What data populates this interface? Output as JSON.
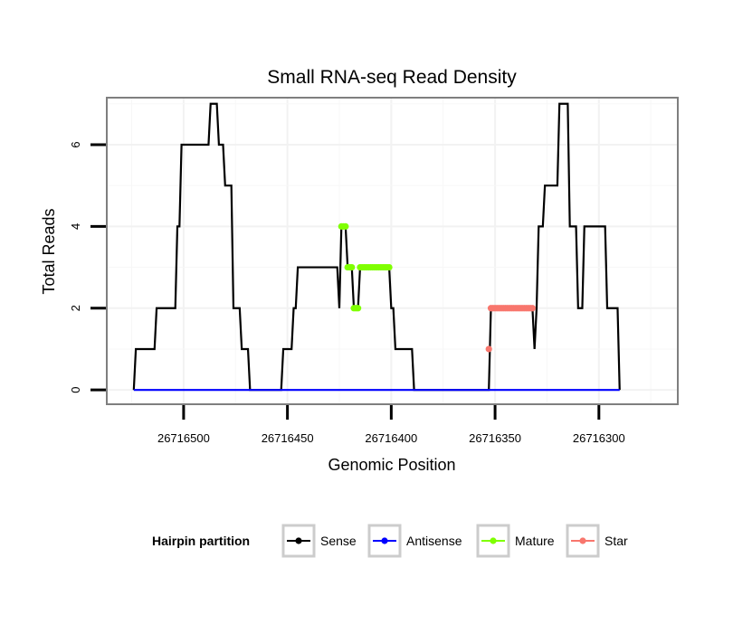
{
  "chart_data": {
    "type": "line",
    "title": "Small RNA-seq Read Density",
    "xlabel": "Genomic Position",
    "ylabel": "Total Reads",
    "x_reversed": true,
    "xlim": [
      26716262,
      26716537
    ],
    "ylim": [
      -0.35,
      7.15
    ],
    "x_ticks": [
      26716500,
      26716450,
      26716400,
      26716350,
      26716300
    ],
    "x_tick_labels": [
      "26716500",
      "26716450",
      "26716400",
      "26716350",
      "26716300"
    ],
    "y_ticks": [
      0,
      2,
      4,
      6
    ],
    "y_tick_labels": [
      "0",
      "2",
      "4",
      "6"
    ],
    "grid": true,
    "legend_title": "Hairpin partition",
    "legend_position": "bottom",
    "series": [
      {
        "name": "Sense",
        "color": "#000000",
        "style": "line",
        "points": [
          [
            26716524,
            0
          ],
          [
            26716523,
            1
          ],
          [
            26716514,
            1
          ],
          [
            26716513,
            2
          ],
          [
            26716504,
            2
          ],
          [
            26716503,
            4
          ],
          [
            26716502,
            4
          ],
          [
            26716501,
            6
          ],
          [
            26716488,
            6
          ],
          [
            26716487,
            7
          ],
          [
            26716484,
            7
          ],
          [
            26716483,
            6
          ],
          [
            26716481,
            6
          ],
          [
            26716480,
            5
          ],
          [
            26716477,
            5
          ],
          [
            26716476,
            2
          ],
          [
            26716473,
            2
          ],
          [
            26716472,
            1
          ],
          [
            26716469,
            1
          ],
          [
            26716468,
            0
          ],
          [
            26716453,
            0
          ],
          [
            26716452,
            1
          ],
          [
            26716448,
            1
          ],
          [
            26716447,
            2
          ],
          [
            26716446,
            2
          ],
          [
            26716445,
            3
          ],
          [
            26716426,
            3
          ],
          [
            26716425,
            2
          ],
          [
            26716424,
            4
          ],
          [
            26716422,
            4
          ],
          [
            26716421,
            3
          ],
          [
            26716419,
            3
          ],
          [
            26716418,
            2
          ],
          [
            26716416,
            2
          ],
          [
            26716415,
            3
          ],
          [
            26716401,
            3
          ],
          [
            26716400,
            2
          ],
          [
            26716399,
            2
          ],
          [
            26716398,
            1
          ],
          [
            26716390,
            1
          ],
          [
            26716389,
            0
          ],
          [
            26716353,
            0
          ],
          [
            26716352,
            2
          ],
          [
            26716332,
            2
          ],
          [
            26716331,
            1
          ],
          [
            26716330,
            2
          ],
          [
            26716329,
            4
          ],
          [
            26716327,
            4
          ],
          [
            26716326,
            5
          ],
          [
            26716320,
            5
          ],
          [
            26716319,
            7
          ],
          [
            26716315,
            7
          ],
          [
            26716314,
            4
          ],
          [
            26716311,
            4
          ],
          [
            26716310,
            2
          ],
          [
            26716308,
            2
          ],
          [
            26716307,
            4
          ],
          [
            26716297,
            4
          ],
          [
            26716296,
            2
          ],
          [
            26716291,
            2
          ],
          [
            26716290,
            0
          ]
        ]
      },
      {
        "name": "Antisense",
        "color": "#0000ff",
        "style": "line",
        "points": [
          [
            26716524,
            0
          ],
          [
            26716290,
            0
          ]
        ]
      },
      {
        "name": "Mature",
        "color": "#7fff00",
        "style": "points",
        "points": [
          [
            26716424,
            4
          ],
          [
            26716423,
            4
          ],
          [
            26716422,
            4
          ],
          [
            26716421,
            3
          ],
          [
            26716420,
            3
          ],
          [
            26716419,
            3
          ],
          [
            26716418,
            2
          ],
          [
            26716417,
            2
          ],
          [
            26716416,
            2
          ],
          [
            26716415,
            3
          ],
          [
            26716414,
            3
          ],
          [
            26716413,
            3
          ],
          [
            26716412,
            3
          ],
          [
            26716411,
            3
          ],
          [
            26716410,
            3
          ],
          [
            26716409,
            3
          ],
          [
            26716408,
            3
          ],
          [
            26716407,
            3
          ],
          [
            26716406,
            3
          ],
          [
            26716405,
            3
          ],
          [
            26716404,
            3
          ],
          [
            26716403,
            3
          ],
          [
            26716402,
            3
          ],
          [
            26716401,
            3
          ]
        ]
      },
      {
        "name": "Star",
        "color": "#f8766d",
        "style": "points",
        "points": [
          [
            26716353,
            1
          ],
          [
            26716352,
            2
          ],
          [
            26716351,
            2
          ],
          [
            26716350,
            2
          ],
          [
            26716349,
            2
          ],
          [
            26716348,
            2
          ],
          [
            26716347,
            2
          ],
          [
            26716346,
            2
          ],
          [
            26716345,
            2
          ],
          [
            26716344,
            2
          ],
          [
            26716343,
            2
          ],
          [
            26716342,
            2
          ],
          [
            26716341,
            2
          ],
          [
            26716340,
            2
          ],
          [
            26716339,
            2
          ],
          [
            26716338,
            2
          ],
          [
            26716337,
            2
          ],
          [
            26716336,
            2
          ],
          [
            26716335,
            2
          ],
          [
            26716334,
            2
          ],
          [
            26716333,
            2
          ],
          [
            26716332,
            2
          ]
        ]
      }
    ]
  }
}
